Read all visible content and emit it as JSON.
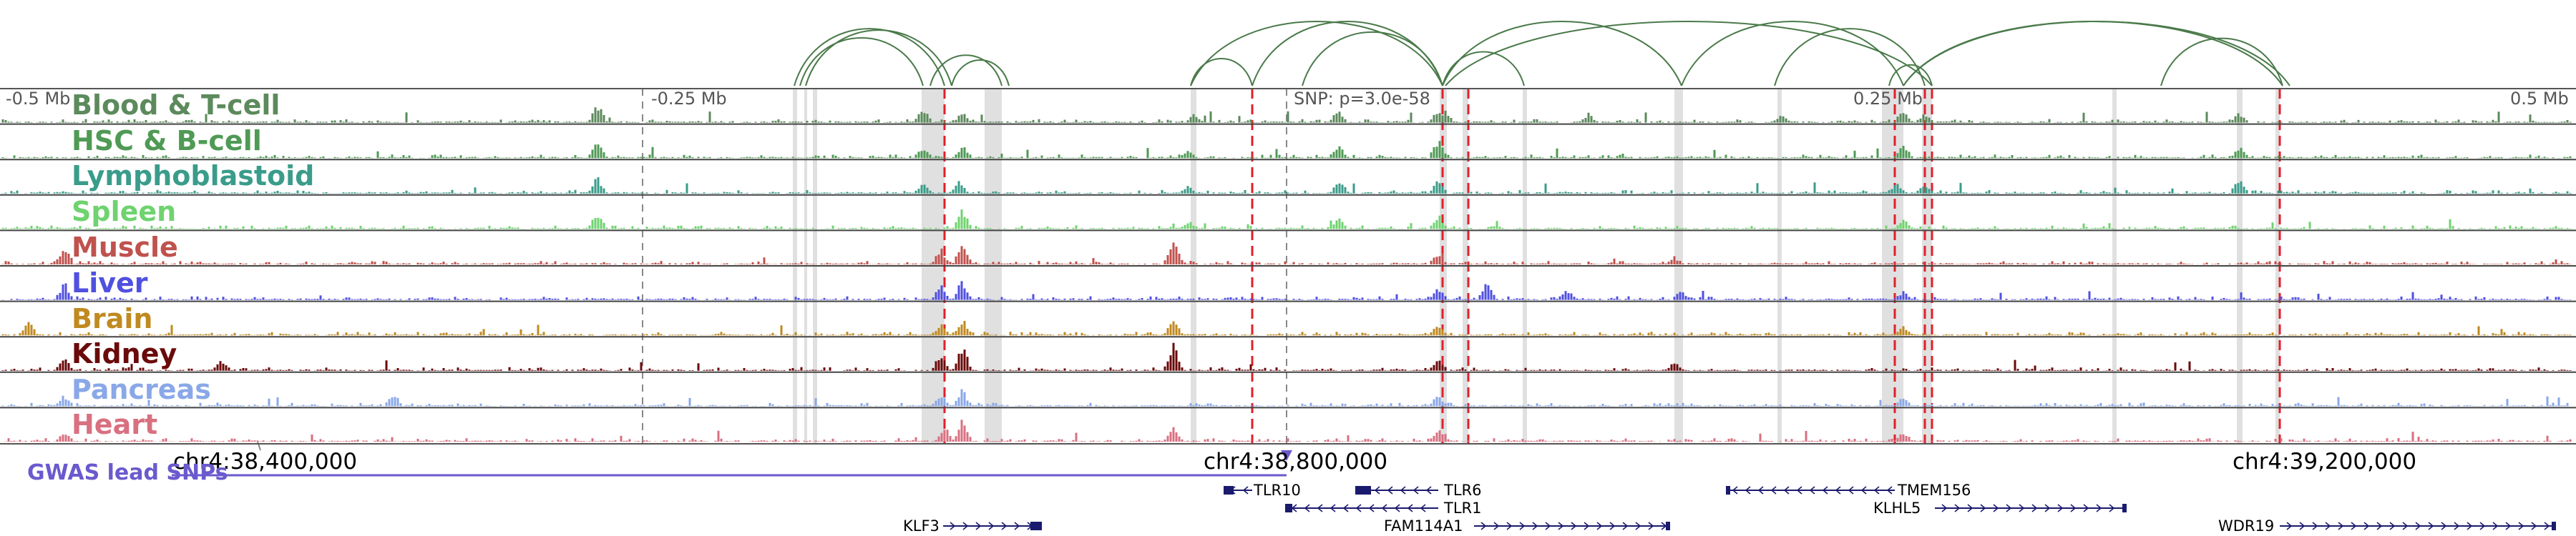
{
  "region": {
    "scale_labels": [
      "-0.5 Mb",
      "-0.25 Mb",
      "0.25 Mb",
      "0.5 Mb"
    ],
    "coordinates": [
      "chr4:38,400,000",
      "chr4:38,800,000",
      "chr4:39,200,000"
    ]
  },
  "snp_label": "SNP: p=3.0e-58",
  "gwas_label": "GWAS lead SNPs",
  "tracks": [
    {
      "name": "Blood & T-cell",
      "color": "#5c8a5c"
    },
    {
      "name": "HSC & B-cell",
      "color": "#4f9a55"
    },
    {
      "name": "Lymphoblastoid",
      "color": "#3a9c8a"
    },
    {
      "name": "Spleen",
      "color": "#6fd36f"
    },
    {
      "name": "Muscle",
      "color": "#c0524e"
    },
    {
      "name": "Liver",
      "color": "#5050e0"
    },
    {
      "name": "Brain",
      "color": "#c08a20"
    },
    {
      "name": "Kidney",
      "color": "#6a0a0a"
    },
    {
      "name": "Pancreas",
      "color": "#8aa8e8"
    },
    {
      "name": "Heart",
      "color": "#d97080"
    }
  ],
  "genes": [
    {
      "name": "TLR10",
      "strand": "-"
    },
    {
      "name": "TLR6",
      "strand": "-"
    },
    {
      "name": "TLR1",
      "strand": "-"
    },
    {
      "name": "TMEM156",
      "strand": "-"
    },
    {
      "name": "KLHL5",
      "strand": "+"
    },
    {
      "name": "KLF3",
      "strand": "+"
    },
    {
      "name": "FAM114A1",
      "strand": "+"
    },
    {
      "name": "WDR19",
      "strand": "+"
    }
  ],
  "colors": {
    "snp_line": "#e0202a",
    "highlight": "#d6d6d6",
    "loop": "#4a7a4a",
    "gene": "#1a1a6e",
    "gwas": "#6a5acd"
  }
}
